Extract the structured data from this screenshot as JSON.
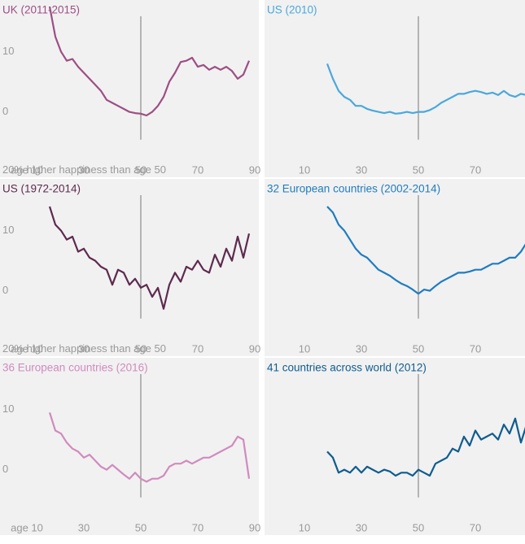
{
  "chart_data": [
    {
      "type": "line",
      "title": "UK (2011-2015)",
      "color": "#9c4f84",
      "x": [
        18,
        20,
        22,
        24,
        26,
        28,
        30,
        32,
        34,
        36,
        38,
        40,
        42,
        44,
        46,
        48,
        50,
        52,
        54,
        56,
        58,
        60,
        62,
        64,
        66,
        68,
        70,
        72,
        74,
        76,
        78,
        80,
        82,
        84,
        86,
        88
      ],
      "values": [
        17.5,
        12.5,
        10,
        8.5,
        8.8,
        7.5,
        6.5,
        5.5,
        4.5,
        3.5,
        2,
        1.5,
        1,
        0.5,
        0,
        -0.2,
        -0.3,
        -0.6,
        0,
        1,
        2.5,
        5,
        6.5,
        8.3,
        8.5,
        9,
        7.5,
        7.8,
        7,
        7.5,
        7,
        7.5,
        6.8,
        5.5,
        6.2,
        8.5
      ],
      "xlim": [
        10,
        90
      ],
      "ylim": [
        -3,
        21.5
      ],
      "vline": 50,
      "xticks": [
        {
          "value": 10,
          "label": "age 10"
        },
        30,
        50,
        70,
        90
      ],
      "yticks": [
        0,
        10,
        {
          "value": 20,
          "label": "20% higher happiness than age 50"
        }
      ]
    },
    {
      "type": "line",
      "title": "US (2010)",
      "color": "#4aa8dc",
      "x": [
        18,
        20,
        22,
        24,
        26,
        28,
        30,
        32,
        34,
        36,
        38,
        40,
        42,
        44,
        46,
        48,
        50,
        52,
        54,
        56,
        58,
        60,
        62,
        64,
        66,
        68,
        70,
        72,
        74,
        76,
        78,
        80,
        82,
        84,
        86,
        88
      ],
      "values": [
        8,
        5.5,
        3.5,
        2.5,
        2,
        1,
        1,
        0.5,
        0.2,
        0,
        -0.2,
        0,
        -0.3,
        -0.2,
        0,
        -0.2,
        0,
        0,
        0.3,
        0.8,
        1.5,
        2,
        2.5,
        3,
        3,
        3.3,
        3.5,
        3.3,
        3,
        3.2,
        2.8,
        3.5,
        2.8,
        2.5,
        3,
        2.8
      ],
      "xlim": [
        10,
        90
      ],
      "ylim": [
        -3,
        21.5
      ],
      "vline": 50,
      "xticks": [
        10,
        30,
        50,
        70,
        90
      ]
    },
    {
      "type": "line",
      "title": "US (1972-2014)",
      "color": "#5e2a4e",
      "x": [
        18,
        20,
        22,
        24,
        26,
        28,
        30,
        32,
        34,
        36,
        38,
        40,
        42,
        44,
        46,
        48,
        50,
        52,
        54,
        56,
        58,
        60,
        62,
        64,
        66,
        68,
        70,
        72,
        74,
        76,
        78,
        80,
        82,
        84,
        86,
        88
      ],
      "values": [
        14,
        11,
        10,
        8.5,
        9,
        6.5,
        7,
        5.5,
        5,
        4,
        3.5,
        1,
        3.5,
        3,
        1,
        2,
        0.5,
        1,
        -1,
        0.5,
        -3,
        1,
        3,
        1.5,
        4,
        3.5,
        5,
        3.5,
        3,
        6,
        4,
        7,
        5,
        9,
        5.5,
        9.5
      ],
      "xlim": [
        10,
        90
      ],
      "ylim": [
        -3,
        21.5
      ],
      "vline": 50,
      "xticks": [
        {
          "value": 10,
          "label": "age 10"
        },
        30,
        50,
        70,
        90
      ],
      "yticks": [
        0,
        10,
        {
          "value": 20,
          "label": "20% higher happiness than age 50"
        }
      ]
    },
    {
      "type": "line",
      "title": "32 European countries (2002-2014)",
      "color": "#1f7cc0",
      "x": [
        18,
        20,
        22,
        24,
        26,
        28,
        30,
        32,
        34,
        36,
        38,
        40,
        42,
        44,
        46,
        48,
        50,
        52,
        54,
        56,
        58,
        60,
        62,
        64,
        66,
        68,
        70,
        72,
        74,
        76,
        78,
        80,
        82,
        84,
        86,
        88
      ],
      "values": [
        14,
        13,
        11,
        10,
        8.5,
        7,
        6,
        5.5,
        4.5,
        3.5,
        3,
        2.5,
        1.8,
        1.2,
        0.8,
        0.2,
        -0.5,
        0.2,
        0,
        0.8,
        1.5,
        2,
        2.5,
        3,
        3,
        3.2,
        3.5,
        3.5,
        4,
        4.5,
        4.5,
        5,
        5.5,
        5.5,
        6.5,
        8
      ],
      "xlim": [
        10,
        90
      ],
      "ylim": [
        -3,
        21.5
      ],
      "vline": 50,
      "xticks": [
        10,
        30,
        50,
        70,
        90
      ]
    },
    {
      "type": "line",
      "title": "36 European countries (2016)",
      "color": "#d08bbd",
      "x": [
        18,
        20,
        22,
        24,
        26,
        28,
        30,
        32,
        34,
        36,
        38,
        40,
        42,
        44,
        46,
        48,
        50,
        52,
        54,
        56,
        58,
        60,
        62,
        64,
        66,
        68,
        70,
        72,
        74,
        76,
        78,
        80,
        82,
        84,
        86,
        88
      ],
      "values": [
        9.5,
        6.5,
        6,
        4.5,
        3.5,
        3,
        2,
        2.5,
        1.5,
        0.5,
        0,
        0.8,
        0,
        -0.8,
        -1.5,
        -0.5,
        -1.5,
        -2,
        -1.5,
        -1.5,
        -1,
        0.5,
        1,
        1,
        1.5,
        1,
        1.5,
        2,
        2,
        2.5,
        3,
        3.5,
        4,
        5.5,
        5,
        -1.5
      ],
      "xlim": [
        10,
        90
      ],
      "ylim": [
        -3,
        21.5
      ],
      "vline": 50,
      "xticks": [
        {
          "value": 10,
          "label": "age 10"
        },
        30,
        50,
        70,
        90
      ],
      "yticks": [
        0,
        10,
        {
          "value": 20,
          "label": "20% higher happiness than age 50"
        }
      ]
    },
    {
      "type": "line",
      "title": "41 countries across world (2012)",
      "color": "#0f5c8e",
      "x": [
        18,
        20,
        22,
        24,
        26,
        28,
        30,
        32,
        34,
        36,
        38,
        40,
        42,
        44,
        46,
        48,
        50,
        52,
        54,
        56,
        58,
        60,
        62,
        64,
        66,
        68,
        70,
        72,
        74,
        76,
        78,
        80,
        82,
        84,
        86,
        88
      ],
      "values": [
        3,
        2,
        -0.5,
        0,
        -0.5,
        0.5,
        -0.5,
        0.5,
        0,
        -0.5,
        0,
        -0.3,
        -1,
        -0.5,
        -0.5,
        -1,
        0,
        -0.5,
        -1,
        1,
        1.5,
        2,
        3.5,
        3,
        5.5,
        4,
        6.5,
        5,
        5.5,
        6,
        5,
        7.5,
        6,
        8.5,
        4.5,
        7.5
      ],
      "xlim": [
        10,
        90
      ],
      "ylim": [
        -3,
        21.5
      ],
      "vline": 50,
      "xticks": [
        10,
        30,
        50,
        70,
        90
      ]
    }
  ]
}
